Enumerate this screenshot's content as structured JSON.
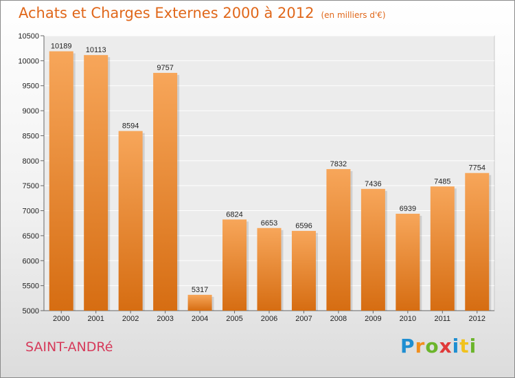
{
  "header": {
    "title": "Achats et Charges Externes 2000 à 2012",
    "subtitle": "(en milliers d'€)"
  },
  "commune": "SAINT-ANDRé",
  "logo": {
    "text": "Proxiti",
    "letters": [
      {
        "ch": "P",
        "color": "#1f8ed1"
      },
      {
        "ch": "r",
        "color": "#f18e1d"
      },
      {
        "ch": "o",
        "color": "#6bb52b"
      },
      {
        "ch": "x",
        "color": "#e03a3a"
      },
      {
        "ch": "i",
        "color": "#1f8ed1"
      },
      {
        "ch": "t",
        "color": "#f1c21d"
      },
      {
        "ch": "i",
        "color": "#6bb52b"
      }
    ]
  },
  "colors": {
    "bar_top": "#f7a65a",
    "bar_bottom": "#d66d12",
    "title": "#e0671a",
    "commune": "#d63a5a"
  },
  "chart_data": {
    "type": "bar",
    "title": "Achats et Charges Externes 2000 à 2012",
    "subtitle": "(en milliers d'€)",
    "xlabel": "",
    "ylabel": "",
    "categories": [
      "2000",
      "2001",
      "2002",
      "2003",
      "2004",
      "2005",
      "2006",
      "2007",
      "2008",
      "2009",
      "2010",
      "2011",
      "2012"
    ],
    "values": [
      10189,
      10113,
      8594,
      9757,
      5317,
      6824,
      6653,
      6596,
      7832,
      7436,
      6939,
      7485,
      7754
    ],
    "ylim": [
      5000,
      10500
    ],
    "yticks": [
      5000,
      5500,
      6000,
      6500,
      7000,
      7500,
      8000,
      8500,
      9000,
      9500,
      10000,
      10500
    ],
    "grid": true,
    "legend": "none"
  }
}
